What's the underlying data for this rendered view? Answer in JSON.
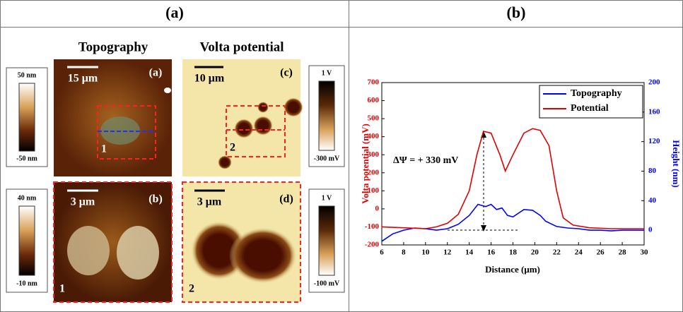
{
  "panel_a": {
    "header": "(a)",
    "columns": [
      "Topography",
      "Volta potential"
    ],
    "images": [
      {
        "scale": "15 μm",
        "label": "(a)",
        "region": "1"
      },
      {
        "scale": "10 μm",
        "label": "(c)",
        "region": "2"
      },
      {
        "scale": "3 μm",
        "label": "(b)",
        "region": "1"
      },
      {
        "scale": "3 μm",
        "label": "(d)",
        "region": "2"
      }
    ],
    "colorbars": [
      {
        "max": "50 nm",
        "min": "-50 nm"
      },
      {
        "max": "1 V",
        "min": "-300 mV"
      },
      {
        "max": "40 nm",
        "min": "-10 nm"
      },
      {
        "max": "1 V",
        "min": "-100 mV"
      }
    ]
  },
  "panel_b": {
    "header": "(b)"
  },
  "chart_data": {
    "type": "line",
    "x_label": "Distance (μm)",
    "y_label": "Volta potential (mV)",
    "y2_label": "Height (nm)",
    "annotation": "ΔΨ = + 330 mV",
    "xlim": [
      6,
      30
    ],
    "xticks": [
      6,
      8,
      10,
      12,
      14,
      16,
      18,
      20,
      22,
      24,
      26,
      28,
      30
    ],
    "ylim": [
      -200,
      700
    ],
    "yticks": [
      -200,
      -100,
      0,
      100,
      200,
      300,
      400,
      500,
      600,
      700
    ],
    "y2lim": [
      -20,
      200
    ],
    "y2ticks": [
      0,
      40,
      80,
      120,
      160,
      200
    ],
    "legend": "upper right",
    "series": [
      {
        "name": "Topography",
        "color": "#0000ff",
        "axis": "y2",
        "x": [
          6,
          7,
          8,
          9,
          10,
          11,
          12,
          13,
          14,
          14.8,
          15.5,
          16,
          16.5,
          17,
          17.5,
          18,
          19,
          19.8,
          20.5,
          21,
          22,
          23,
          24,
          25,
          26,
          27,
          28,
          30
        ],
        "values": [
          -15,
          -5,
          0,
          3,
          2,
          0,
          2,
          8,
          20,
          35,
          32,
          35,
          28,
          30,
          20,
          18,
          28,
          27,
          20,
          12,
          5,
          3,
          2,
          0,
          0,
          -1,
          0,
          0
        ]
      },
      {
        "name": "Potential",
        "color": "#e00000",
        "x": [
          6,
          8,
          10,
          11,
          12,
          13,
          14,
          14.7,
          15.3,
          16,
          16.8,
          17.3,
          18,
          19,
          19.8,
          20.5,
          21.3,
          22,
          22.6,
          23.5,
          25,
          27,
          30
        ],
        "values": [
          -100,
          -105,
          -110,
          -100,
          -80,
          -30,
          100,
          300,
          430,
          420,
          300,
          210,
          300,
          420,
          445,
          435,
          350,
          100,
          -50,
          -90,
          -105,
          -110,
          -110
        ]
      }
    ]
  }
}
